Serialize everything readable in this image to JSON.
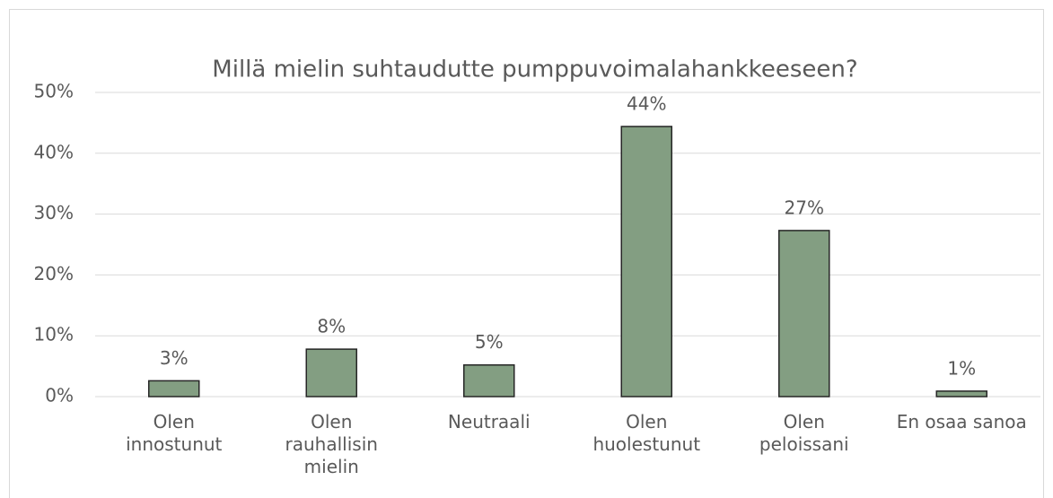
{
  "chart_data": {
    "type": "bar",
    "title": "Millä mielin suhtaudutte pumppuvoimalahankkeeseen?",
    "categories": [
      "Olen\ninnostunut",
      "Olen\nrauhallisin\nmielin",
      "Neutraali",
      "Olen\nhuolestunut",
      "Olen\npeloissani",
      "En osaa sanoa"
    ],
    "values": [
      2.6,
      7.8,
      5.2,
      44.4,
      27.3,
      0.9
    ],
    "value_labels": [
      "3%",
      "8%",
      "5%",
      "44%",
      "27%",
      "1%"
    ],
    "color": "#839e82",
    "ylim": [
      0,
      50
    ],
    "yticks": [
      {
        "value": 0,
        "label": "0%"
      },
      {
        "value": 10,
        "label": "10%"
      },
      {
        "value": 20,
        "label": "20%"
      },
      {
        "value": 30,
        "label": "30%"
      },
      {
        "value": 40,
        "label": "40%"
      },
      {
        "value": 50,
        "label": "50%"
      }
    ],
    "grid": true
  }
}
